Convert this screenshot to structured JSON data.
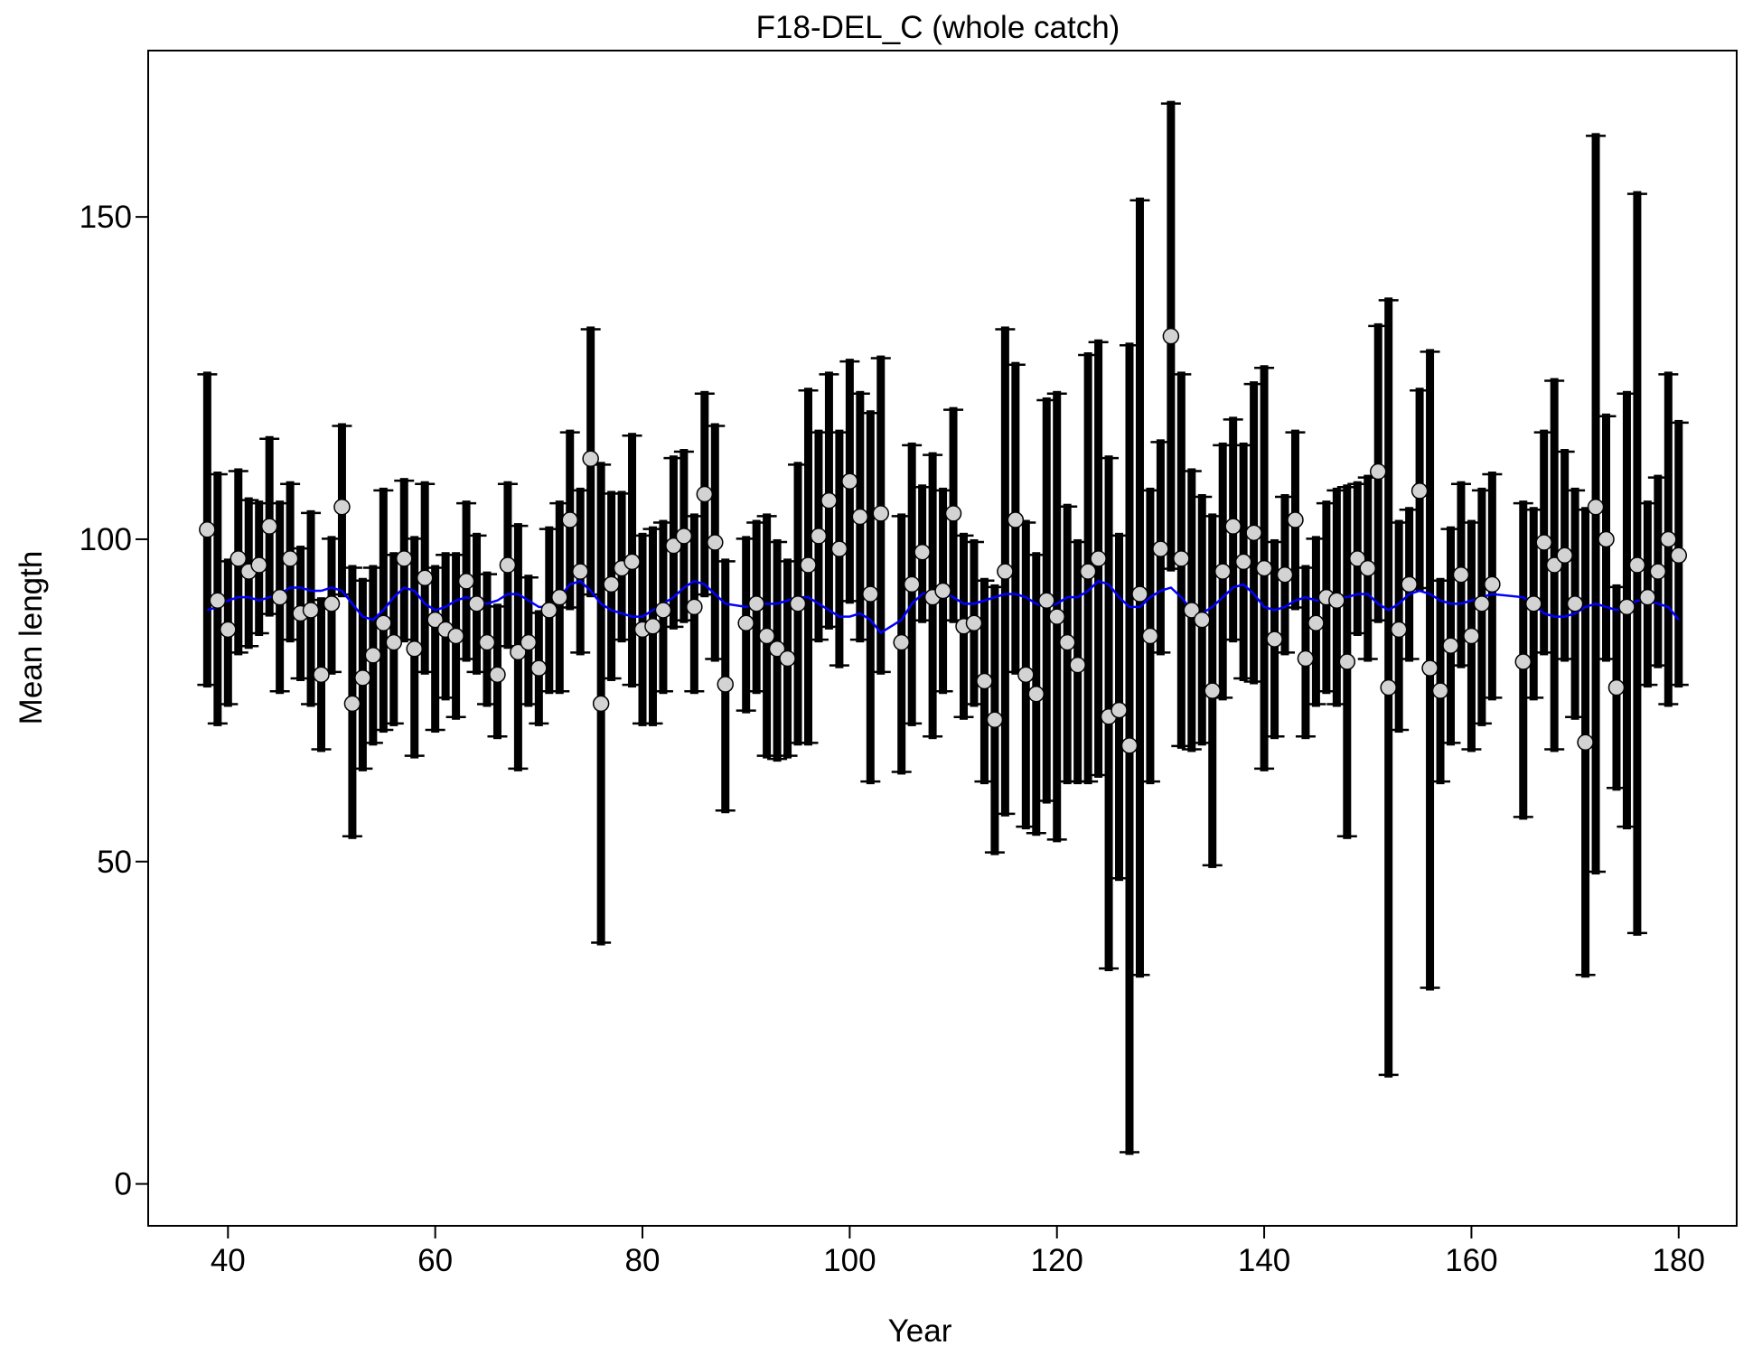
{
  "chart_data": {
    "type": "errorbar",
    "title": "F18-DEL_C (whole catch)",
    "xlabel": "Year",
    "ylabel": "Mean length",
    "xlim": [
      32.3,
      185.6
    ],
    "ylim": [
      -6.5,
      175.8
    ],
    "xticks": [
      40,
      60,
      80,
      100,
      120,
      140,
      160,
      180
    ],
    "yticks": [
      0,
      50,
      100,
      150
    ],
    "point_color": "#d3d3d3",
    "bar_color": "#000000",
    "line_color": "#0000ff",
    "x": [
      38,
      39,
      40,
      41,
      42,
      43,
      44,
      45,
      46,
      47,
      48,
      49,
      50,
      51,
      52,
      53,
      54,
      55,
      56,
      57,
      58,
      59,
      60,
      61,
      62,
      63,
      64,
      65,
      66,
      67,
      68,
      69,
      70,
      71,
      72,
      73,
      74,
      75,
      76,
      77,
      78,
      79,
      80,
      81,
      82,
      83,
      84,
      85,
      86,
      87,
      88,
      90,
      91,
      92,
      93,
      94,
      95,
      96,
      97,
      98,
      99,
      100,
      101,
      102,
      103,
      105,
      106,
      107,
      108,
      109,
      110,
      111,
      112,
      113,
      114,
      115,
      116,
      117,
      118,
      119,
      120,
      121,
      122,
      123,
      124,
      125,
      126,
      127,
      128,
      129,
      130,
      131,
      132,
      133,
      134,
      135,
      136,
      137,
      138,
      139,
      140,
      141,
      142,
      143,
      144,
      145,
      146,
      147,
      148,
      149,
      150,
      151,
      152,
      153,
      154,
      155,
      156,
      157,
      158,
      159,
      160,
      161,
      162,
      165,
      166,
      167,
      168,
      169,
      170,
      171,
      172,
      173,
      174,
      175,
      176,
      177,
      178,
      179,
      180
    ],
    "values": [
      101.5,
      90.5,
      86,
      97,
      95,
      96,
      102,
      91,
      97,
      88.5,
      89,
      79,
      90,
      105,
      74.5,
      78.5,
      82,
      87,
      84,
      97,
      83,
      94,
      87.5,
      86,
      85,
      93.5,
      90,
      84,
      79,
      96,
      82.5,
      84,
      80,
      89,
      91,
      103,
      95,
      112.5,
      74.5,
      93,
      95.5,
      96.5,
      86,
      86.5,
      89,
      99,
      100.5,
      89.5,
      107,
      99.5,
      77.5,
      87,
      90,
      85,
      83,
      81.5,
      90,
      96,
      100.5,
      106,
      98.5,
      109,
      103.5,
      91.5,
      104,
      84,
      93,
      98,
      91,
      92,
      104,
      86.5,
      87,
      78,
      72,
      95,
      103,
      79,
      76,
      90.5,
      88,
      84,
      80.5,
      95,
      97,
      72.5,
      73.5,
      68,
      91.5,
      85,
      98.5,
      131.5,
      97,
      89,
      87.5,
      76.5,
      95,
      102,
      96.5,
      101,
      95.5,
      84.5,
      94.5,
      103,
      81.5,
      87,
      91,
      90.5,
      81,
      97,
      95.5,
      110.5,
      77,
      86,
      93,
      107.5,
      80,
      76.5,
      83.5,
      94.5,
      85,
      90,
      93,
      81,
      90,
      99.5,
      96,
      97.5,
      90,
      68.5,
      105,
      100,
      77,
      89.5,
      96,
      91,
      95,
      100,
      97.5
    ],
    "upper": [
      126,
      110.5,
      97,
      111,
      106.5,
      106,
      116,
      106,
      109,
      99,
      104.5,
      91,
      100.5,
      118,
      96,
      94,
      96,
      108,
      98,
      109.5,
      100.5,
      109,
      96,
      98,
      98,
      106,
      101,
      95,
      90,
      109,
      102.5,
      94.5,
      89,
      102,
      106,
      117,
      108,
      133,
      112,
      107.5,
      107.5,
      116.5,
      101,
      102,
      103,
      113,
      114,
      104,
      123,
      118,
      97,
      100.5,
      103,
      104,
      100,
      97,
      112,
      123.5,
      117,
      126,
      117,
      128,
      123,
      120,
      128.5,
      104,
      115,
      108.5,
      113.5,
      108,
      120.5,
      101,
      100,
      94,
      93,
      133,
      127.5,
      103,
      98,
      122,
      123,
      105.5,
      100,
      129,
      131,
      113,
      101,
      130.5,
      153,
      108,
      115.5,
      168,
      126,
      111,
      107,
      104,
      115,
      119,
      115,
      124.5,
      127,
      100,
      107,
      117,
      96,
      100.5,
      106,
      108,
      108.5,
      109,
      110,
      133.5,
      137.5,
      103,
      105,
      123.5,
      129.5,
      94,
      102,
      109,
      103,
      108,
      110.5,
      106,
      105,
      117,
      125,
      114,
      108,
      105,
      163,
      119.5,
      93,
      123,
      154,
      106,
      110,
      126,
      118.5
    ],
    "lower": [
      77,
      71,
      74,
      82,
      83,
      85,
      88,
      76,
      84,
      78,
      74,
      67,
      79,
      91,
      53.5,
      64,
      68,
      70,
      71,
      84,
      66,
      79,
      70,
      75,
      72,
      81,
      79,
      74,
      69,
      83,
      64,
      74,
      71,
      76,
      76,
      89,
      82,
      91,
      37,
      78,
      84,
      77,
      71,
      71,
      76,
      86,
      87,
      76,
      91,
      81,
      57.5,
      73,
      76,
      66,
      65.5,
      66,
      68,
      68,
      84,
      86,
      80,
      90,
      84,
      62,
      79,
      63.5,
      71,
      87,
      69,
      76,
      87,
      72,
      74,
      62,
      51,
      57,
      79,
      55,
      54,
      59,
      53,
      62,
      62,
      62,
      63,
      33,
      47,
      4.5,
      32,
      62,
      82,
      95,
      67.5,
      67,
      68,
      49,
      75,
      84,
      78,
      77.5,
      64,
      69,
      82,
      89,
      69,
      74,
      76,
      74,
      53.5,
      85,
      81,
      87,
      16.5,
      70,
      81,
      92,
      30,
      62,
      68,
      80,
      67,
      71,
      75,
      56.5,
      75,
      82,
      67,
      81,
      72,
      32,
      48,
      81,
      61,
      55,
      38.5,
      77,
      80,
      74,
      77
    ],
    "expected": [
      89,
      89.5,
      90.5,
      91,
      91,
      90.5,
      91,
      91.5,
      92.5,
      92.5,
      92,
      92,
      92.5,
      92,
      90,
      88,
      87.5,
      89,
      91,
      92.5,
      92,
      90,
      89,
      89.5,
      90.5,
      91,
      90.5,
      90,
      90.5,
      91.5,
      91.5,
      90.5,
      89.5,
      89.5,
      91,
      93,
      93.5,
      92,
      90,
      89,
      88.5,
      88,
      88,
      89,
      90,
      91,
      92.5,
      93.5,
      93,
      91.5,
      90,
      89.5,
      90,
      90,
      90,
      90.5,
      91,
      91,
      90,
      89,
      88,
      88,
      88.5,
      87.5,
      85.5,
      87.5,
      90,
      91.5,
      92,
      92,
      91,
      90,
      90,
      90.5,
      91,
      91.5,
      91.5,
      91,
      90,
      89.5,
      90,
      91,
      91,
      92,
      93.5,
      93,
      91,
      89.5,
      89.5,
      91,
      92,
      92.5,
      91,
      89,
      88.5,
      89.5,
      91,
      92.5,
      93,
      91.5,
      89.5,
      89,
      89.5,
      90.5,
      91,
      90.5,
      90.5,
      91,
      91,
      91.5,
      91.5,
      90,
      89,
      90,
      91.5,
      92,
      91.5,
      90.5,
      90,
      90,
      90.5,
      91,
      91.5,
      91,
      90,
      88.5,
      88,
      88,
      88.5,
      89.5,
      90,
      89.5,
      89,
      89.5,
      90.5,
      90.5,
      90,
      89.5,
      87.5
    ]
  }
}
